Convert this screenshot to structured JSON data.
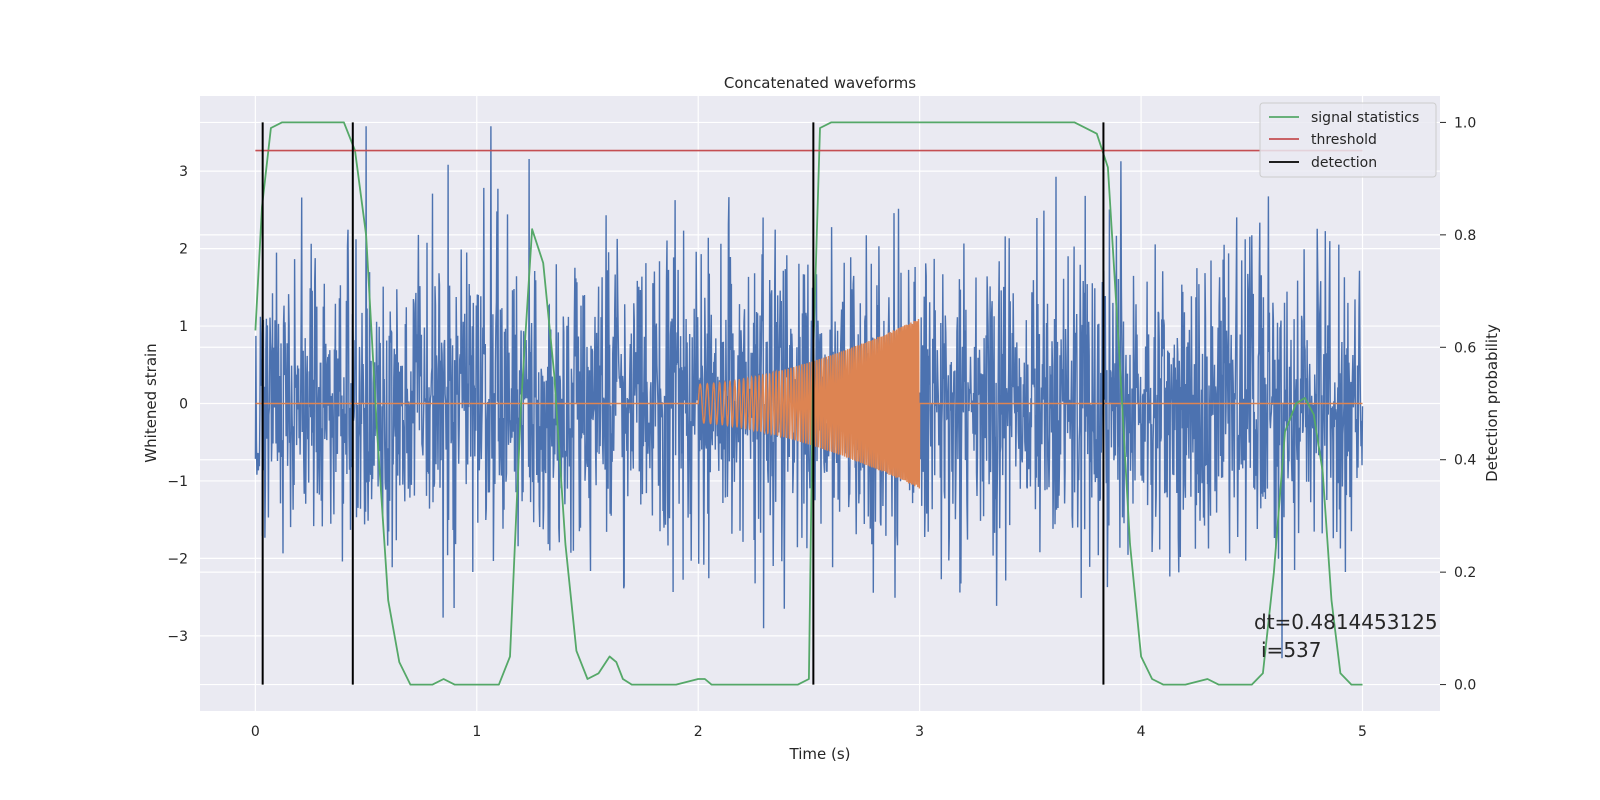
{
  "chart_data": {
    "type": "line",
    "title": "Concatenated waveforms",
    "xlabel": "Time (s)",
    "ylabel": "Whitened strain",
    "y2label": "Detection probability",
    "xlim": [
      -0.25,
      5.35
    ],
    "ylim": [
      -3.97,
      3.97
    ],
    "y2lim": [
      -0.047,
      1.047
    ],
    "x_ticks": [
      0,
      1,
      2,
      3,
      4,
      5
    ],
    "y_ticks": [
      -3,
      -2,
      -1,
      0,
      1,
      2,
      3
    ],
    "y2_ticks": [
      0.0,
      0.2,
      0.4,
      0.6,
      0.8,
      1.0
    ],
    "y2_tick_labels": [
      "0.0",
      "0.2",
      "0.4",
      "0.6",
      "0.8",
      "1.0"
    ],
    "grid": true,
    "legend_position": "top-right",
    "series": [
      {
        "name": "",
        "axis": "left",
        "color": "#4c72b0",
        "description_values": {
          "x_range": [
            0,
            5
          ],
          "mean": 0,
          "std": 1.0,
          "peak_max": 3.58,
          "peak_min": -3.62
        }
      },
      {
        "name": "",
        "axis": "left",
        "color": "#dd8452",
        "x_range": [
          2.0,
          3.0
        ],
        "amplitude_start": 0.25,
        "amplitude_end": 1.1,
        "baseline": 0
      },
      {
        "name": "signal statistics",
        "axis": "right",
        "color": "#55a868",
        "x": [
          0.0,
          0.03,
          0.07,
          0.12,
          0.2,
          0.4,
          0.45,
          0.5,
          0.55,
          0.6,
          0.65,
          0.7,
          0.8,
          0.85,
          0.9,
          1.0,
          1.1,
          1.15,
          1.2,
          1.25,
          1.3,
          1.35,
          1.4,
          1.45,
          1.5,
          1.55,
          1.6,
          1.63,
          1.66,
          1.7,
          1.8,
          1.9,
          2.0,
          2.03,
          2.06,
          2.1,
          2.3,
          2.45,
          2.5,
          2.52,
          2.55,
          2.6,
          3.0,
          3.7,
          3.8,
          3.85,
          3.9,
          3.95,
          4.0,
          4.05,
          4.1,
          4.2,
          4.3,
          4.35,
          4.4,
          4.5,
          4.55,
          4.6,
          4.65,
          4.7,
          4.74,
          4.78,
          4.82,
          4.86,
          4.9,
          4.95,
          5.0
        ],
        "y": [
          0.63,
          0.85,
          0.99,
          1.0,
          1.0,
          1.0,
          0.95,
          0.8,
          0.45,
          0.15,
          0.04,
          0.0,
          0.0,
          0.01,
          0.0,
          0.0,
          0.0,
          0.05,
          0.5,
          0.81,
          0.75,
          0.55,
          0.25,
          0.06,
          0.01,
          0.02,
          0.05,
          0.04,
          0.01,
          0.0,
          0.0,
          0.0,
          0.01,
          0.01,
          0.0,
          0.0,
          0.0,
          0.0,
          0.01,
          0.6,
          0.99,
          1.0,
          1.0,
          1.0,
          0.98,
          0.92,
          0.6,
          0.25,
          0.05,
          0.01,
          0.0,
          0.0,
          0.01,
          0.0,
          0.0,
          0.0,
          0.02,
          0.2,
          0.45,
          0.5,
          0.51,
          0.48,
          0.38,
          0.15,
          0.02,
          0.0,
          0.0
        ]
      },
      {
        "name": "threshold",
        "axis": "right",
        "color": "#c44e52",
        "x": [
          0,
          5
        ],
        "y": [
          0.95,
          0.95
        ]
      },
      {
        "name": "detection",
        "axis": "right",
        "color": "#000000",
        "x_positions": [
          0.033,
          0.44,
          2.52,
          3.83
        ],
        "y_range": [
          0,
          1
        ]
      }
    ],
    "annotations": [
      {
        "text": "dt=0.4814453125",
        "x": 4.5,
        "y": -3.0
      },
      {
        "text": "i=537",
        "x": 4.53,
        "y": -3.35
      }
    ]
  }
}
